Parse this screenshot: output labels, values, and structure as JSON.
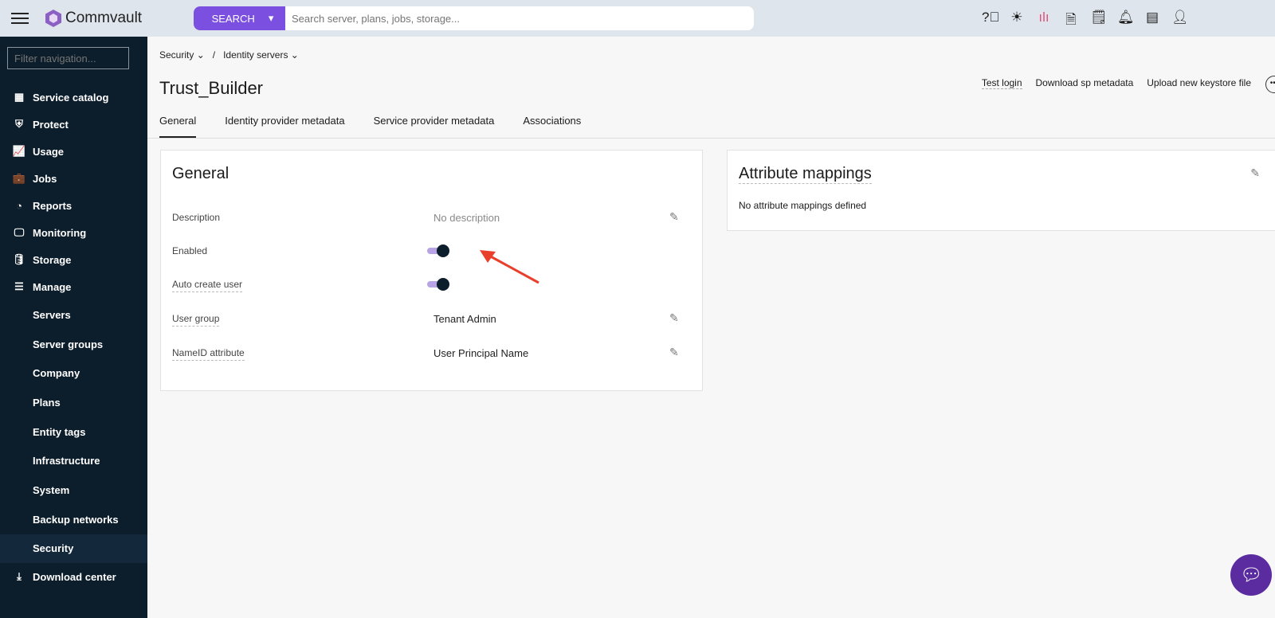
{
  "topbar": {
    "brand": "Commvault",
    "search_button": "SEARCH",
    "search_placeholder": "Search server, plans, jobs, storage...",
    "icons": [
      "help-icon",
      "theme-icon",
      "activity-icon",
      "download-file-icon",
      "report-schedule-icon",
      "bell-icon",
      "calendar-icon",
      "user-icon"
    ]
  },
  "sidebar": {
    "filter_placeholder": "Filter navigation...",
    "items": [
      {
        "label": "Service catalog",
        "icon": "▦"
      },
      {
        "label": "Protect",
        "icon": "⛨"
      },
      {
        "label": "Usage",
        "icon": "📈"
      },
      {
        "label": "Jobs",
        "icon": "💼"
      },
      {
        "label": "Reports",
        "icon": "◔"
      },
      {
        "label": "Monitoring",
        "icon": "🖵"
      },
      {
        "label": "Storage",
        "icon": "🛢"
      },
      {
        "label": "Manage",
        "icon": "☰"
      }
    ],
    "sub_items": [
      "Servers",
      "Server groups",
      "Company",
      "Plans",
      "Entity tags",
      "Infrastructure",
      "System",
      "Backup networks",
      "Security"
    ],
    "bottom": {
      "label": "Download center",
      "icon": "⤓"
    }
  },
  "breadcrumb": {
    "first": "Security",
    "second": "Identity servers"
  },
  "page": {
    "title": "Trust_Builder"
  },
  "actions": {
    "test_login": "Test login",
    "download": "Download sp metadata",
    "upload": "Upload new keystore file"
  },
  "tabs": [
    "General",
    "Identity provider metadata",
    "Service provider metadata",
    "Associations"
  ],
  "general": {
    "title": "General",
    "description_label": "Description",
    "description_value": "No description",
    "enabled_label": "Enabled",
    "enabled": true,
    "auto_create_label": "Auto create user",
    "auto_create": true,
    "user_group_label": "User group",
    "user_group_value": "Tenant Admin",
    "nameid_label": "NameID attribute",
    "nameid_value": "User Principal Name"
  },
  "attributes": {
    "title": "Attribute mappings",
    "empty": "No attribute mappings defined"
  },
  "colors": {
    "accent": "#7b4fe0",
    "sidebar": "#0c1d2b",
    "annotation_arrow": "#e8402a"
  }
}
